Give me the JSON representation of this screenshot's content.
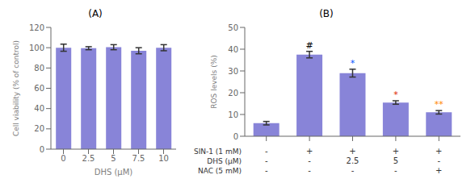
{
  "chart_data": [
    {
      "type": "bar",
      "title": "(A)",
      "categories": [
        "0",
        "2.5",
        "5",
        "7.5",
        "10"
      ],
      "values": [
        100.0,
        99.5,
        100.5,
        97.0,
        100.0
      ],
      "errors": [
        3.5,
        1.5,
        2.5,
        3.0,
        3.0
      ],
      "xlabel": "DHS (μM)",
      "ylabel": "Cell viability (% of control)",
      "ylim": [
        0,
        120
      ],
      "yticks": [
        0,
        20,
        40,
        60,
        80,
        100,
        120
      ]
    },
    {
      "type": "bar",
      "title": "(B)",
      "categories": [
        null,
        null,
        null,
        null,
        null
      ],
      "values": [
        6.0,
        37.5,
        29.0,
        15.5,
        11.0
      ],
      "errors": [
        0.8,
        1.5,
        1.8,
        0.8,
        0.8
      ],
      "ylabel": "ROS levels (%)",
      "ylim": [
        0,
        50
      ],
      "yticks": [
        0,
        10,
        20,
        30,
        40,
        50
      ],
      "annotations": [
        null,
        "#",
        "*",
        "*",
        "**"
      ],
      "annotation_colors": [
        null,
        "#000000",
        "#0055ff",
        "#dd2200",
        "#ff8800"
      ],
      "table": [
        {
          "label": "SIN-1 (1 mM)",
          "values": [
            "-",
            "+",
            "+",
            "+",
            "+"
          ]
        },
        {
          "label": "DHS (μM)",
          "values": [
            "-",
            "-",
            "2.5",
            "5",
            "-"
          ]
        },
        {
          "label": "NAC (5 mM)",
          "values": [
            "-",
            "-",
            "-",
            "-",
            "+"
          ]
        }
      ]
    }
  ]
}
